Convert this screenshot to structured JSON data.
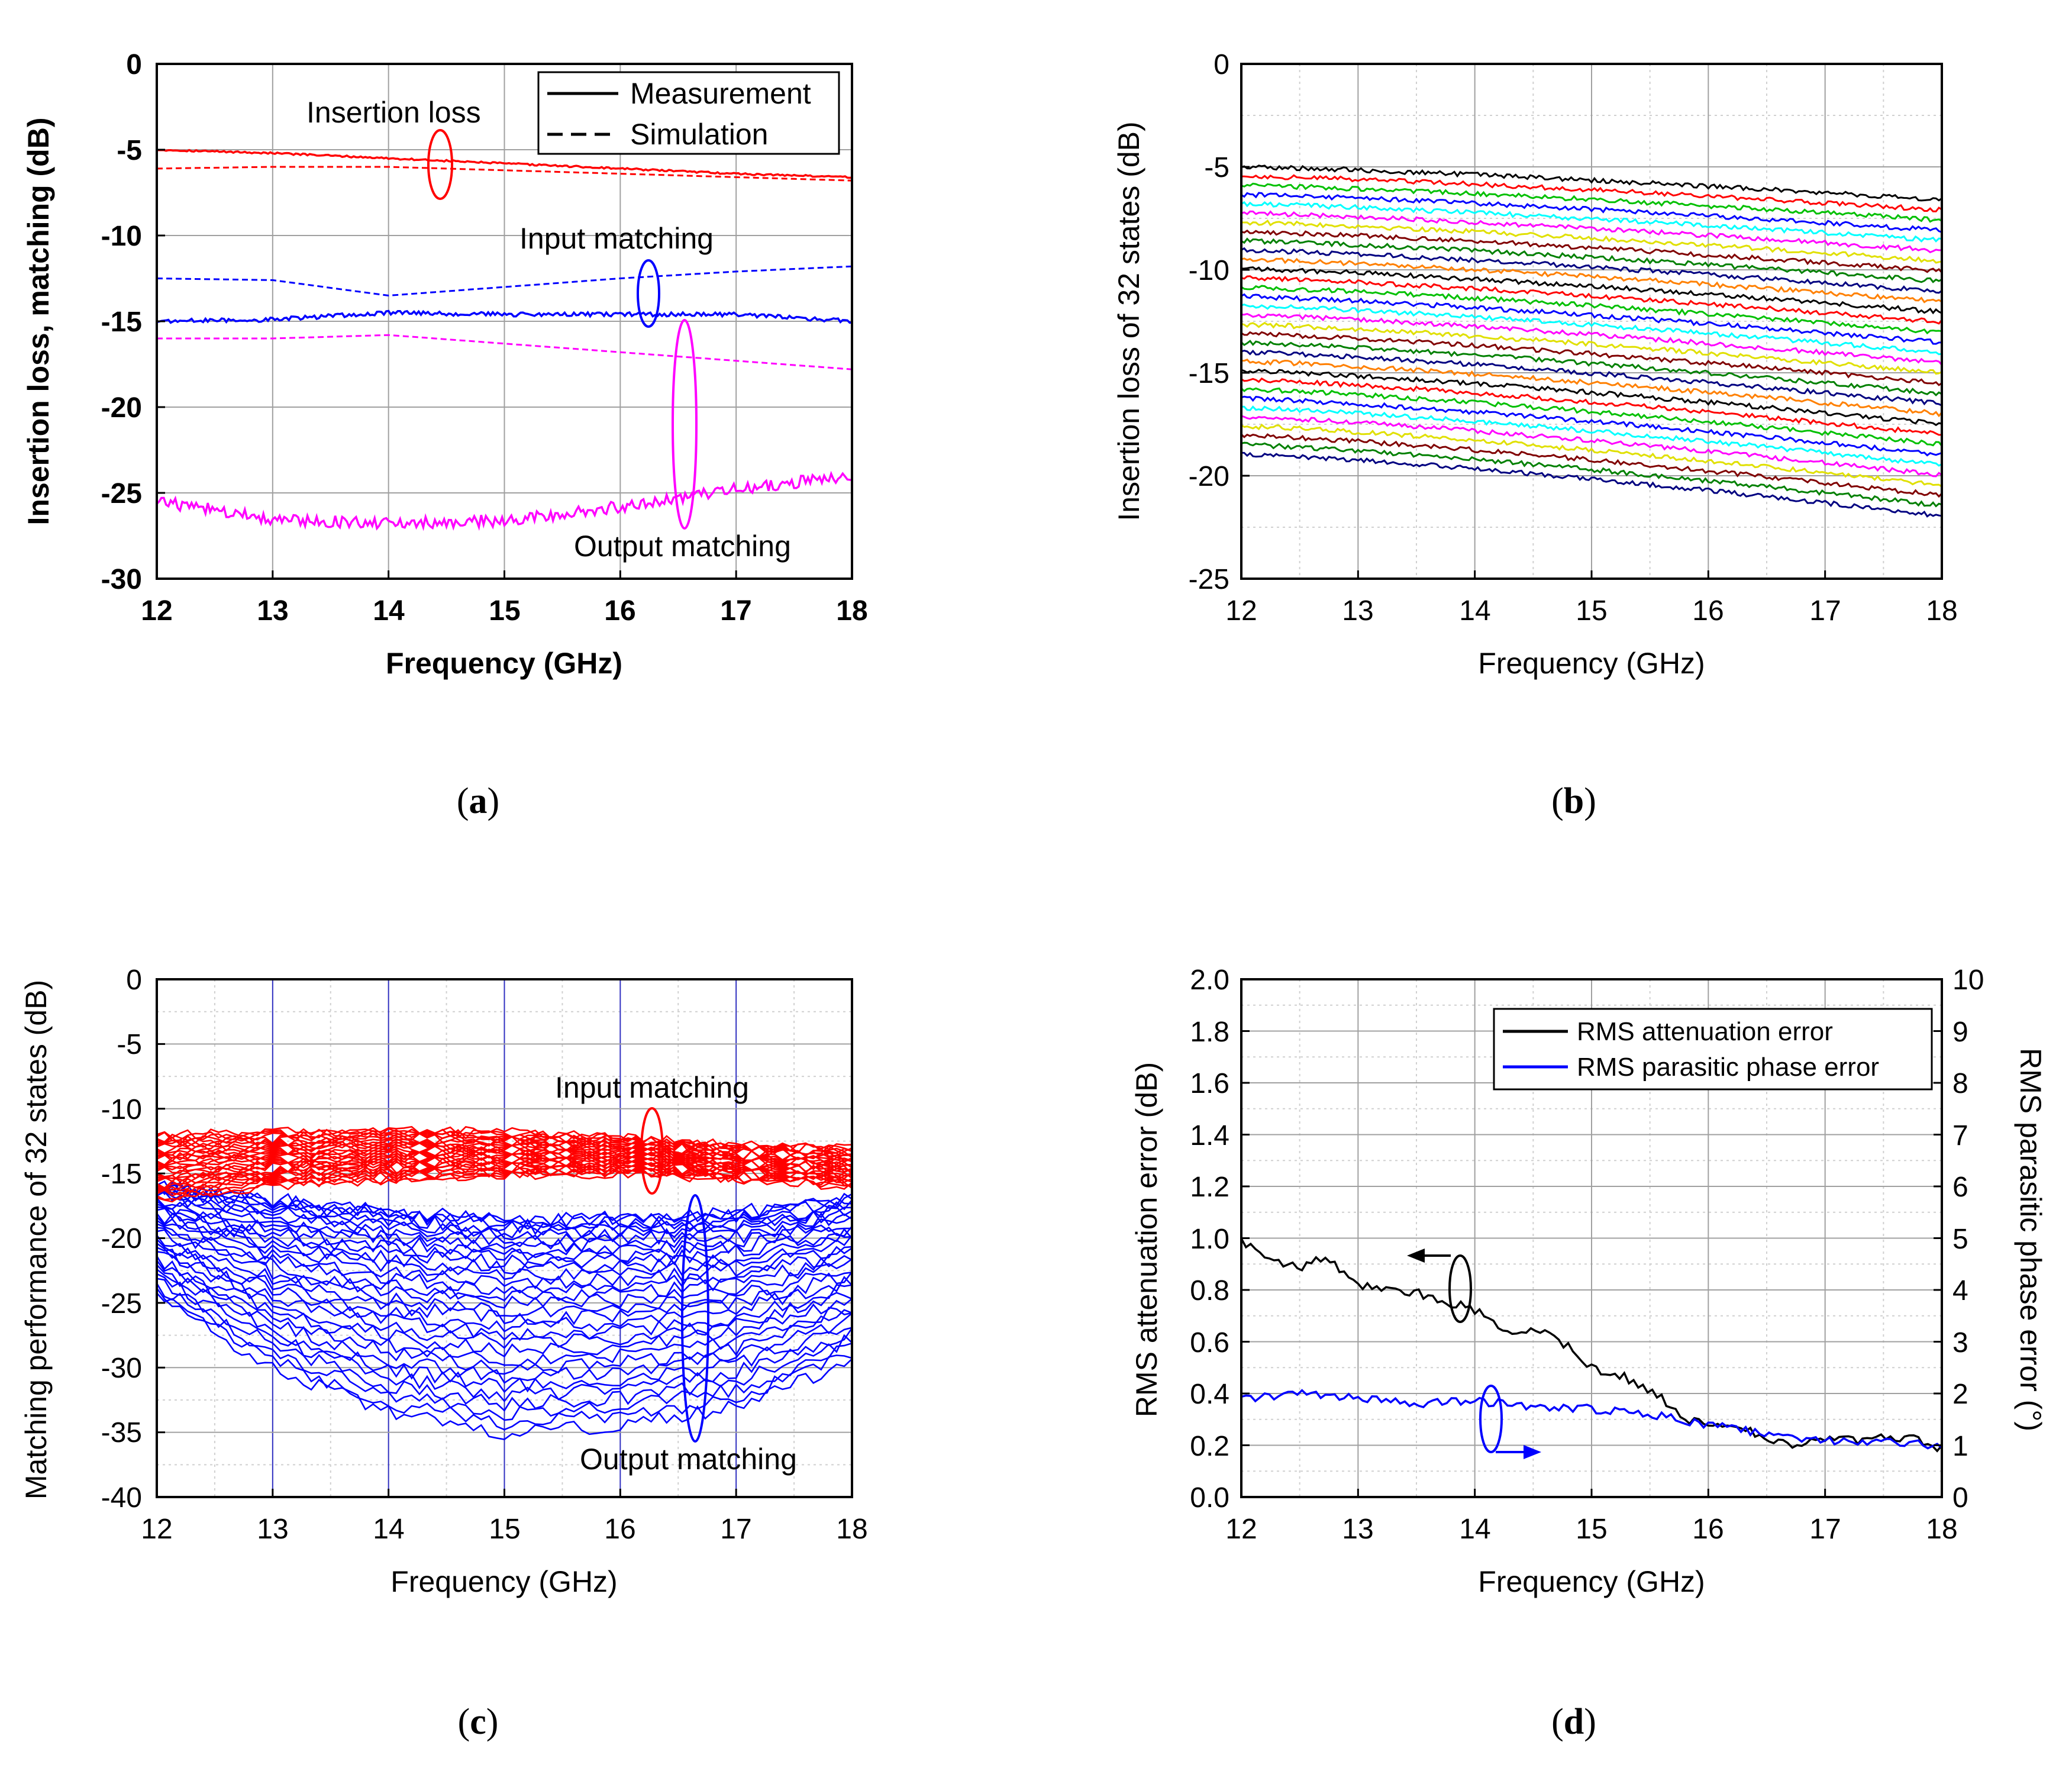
{
  "chart_data": [
    {
      "id": "a",
      "type": "line",
      "caption": "a",
      "xlabel": "Frequency (GHz)",
      "ylabel": "Insertion loss, matching (dB)",
      "xlim": [
        12,
        18
      ],
      "ylim": [
        -30,
        0
      ],
      "xticks": [
        "12",
        "13",
        "14",
        "15",
        "16",
        "17",
        "18"
      ],
      "yticks": [
        "0",
        "-5",
        "-10",
        "-15",
        "-20",
        "-25",
        "-30"
      ],
      "grid": true,
      "legend": {
        "position": "top-right",
        "entries": [
          {
            "label": "Measurement",
            "style": "solid"
          },
          {
            "label": "Simulation",
            "style": "dashed"
          }
        ]
      },
      "annotations": [
        "Insertion loss",
        "Input matching",
        "Output matching"
      ],
      "x": [
        12,
        13,
        14,
        15,
        16,
        17,
        18
      ],
      "series": [
        {
          "name": "Insertion loss (measurement)",
          "color": "#ff0000",
          "style": "solid",
          "noise": 0.05,
          "values": [
            -5.0,
            -5.2,
            -5.5,
            -5.8,
            -6.1,
            -6.4,
            -6.6
          ]
        },
        {
          "name": "Insertion loss (simulation)",
          "color": "#ff0000",
          "style": "dashed",
          "noise": 0,
          "values": [
            -6.1,
            -6.0,
            -6.0,
            -6.2,
            -6.4,
            -6.6,
            -6.8
          ]
        },
        {
          "name": "Input matching (measurement)",
          "color": "#0000ff",
          "style": "solid",
          "noise": 0.12,
          "values": [
            -15.0,
            -14.9,
            -14.5,
            -14.6,
            -14.6,
            -14.6,
            -15.0
          ]
        },
        {
          "name": "Input matching (simulation)",
          "color": "#0000ff",
          "style": "dashed",
          "noise": 0,
          "values": [
            -12.5,
            -12.6,
            -13.5,
            -13.0,
            -12.5,
            -12.1,
            -11.8
          ]
        },
        {
          "name": "Output matching (measurement)",
          "color": "#ff00ff",
          "style": "solid",
          "noise": 0.35,
          "values": [
            -25.5,
            -26.5,
            -26.8,
            -26.6,
            -25.8,
            -24.8,
            -24.0
          ]
        },
        {
          "name": "Output matching (simulation)",
          "color": "#ff00ff",
          "style": "dashed",
          "noise": 0,
          "values": [
            -16.0,
            -16.0,
            -15.8,
            -16.3,
            -16.8,
            -17.3,
            -17.8
          ]
        }
      ]
    },
    {
      "id": "b",
      "type": "line",
      "caption": "b",
      "xlabel": "Frequency (GHz)",
      "ylabel": "Insertion loss of 32 states (dB)",
      "xlim": [
        12,
        18
      ],
      "ylim": [
        -25,
        0
      ],
      "xticks": [
        "12",
        "13",
        "14",
        "15",
        "16",
        "17",
        "18"
      ],
      "yticks": [
        "0",
        "-5",
        "-10",
        "-15",
        "-20",
        "-25"
      ],
      "grid": true,
      "states": 32,
      "state_start": -5.0,
      "state_step": 0.45,
      "top_state_slope": -1.6,
      "bottom_state_slope": -3.0,
      "colors": [
        "#000000",
        "#ff0000",
        "#00c000",
        "#0000ff",
        "#00ffff",
        "#ff00ff",
        "#e0e000",
        "#800000",
        "#008000",
        "#000080",
        "#ff8000"
      ]
    },
    {
      "id": "c",
      "type": "line",
      "caption": "c",
      "xlabel": "Frequency (GHz)",
      "ylabel": "Matching performance of 32 states (dB)",
      "xlim": [
        12,
        18
      ],
      "ylim": [
        -40,
        0
      ],
      "xticks": [
        "12",
        "13",
        "14",
        "15",
        "16",
        "17",
        "18"
      ],
      "yticks": [
        "0",
        "-5",
        "-10",
        "-15",
        "-20",
        "-25",
        "-30",
        "-35",
        "-40"
      ],
      "grid": true,
      "annotations": [
        "Input matching",
        "Output matching"
      ],
      "x": [
        12,
        13,
        14,
        15,
        16,
        17,
        18
      ],
      "input_matching": {
        "color": "#ff0000",
        "upper": [
          -12.0,
          -11.8,
          -11.6,
          -11.8,
          -12.2,
          -12.8,
          -13.0
        ],
        "lower": [
          -17.0,
          -16.0,
          -15.5,
          -15.2,
          -15.0,
          -15.5,
          -16.0
        ]
      },
      "output_matching": {
        "color": "#0000ff",
        "upper": [
          -16.0,
          -17.0,
          -18.0,
          -18.5,
          -18.5,
          -18.0,
          -17.0
        ],
        "lower": [
          -24.5,
          -30.0,
          -33.5,
          -35.0,
          -34.5,
          -33.0,
          -29.5
        ]
      }
    },
    {
      "id": "d",
      "type": "line",
      "caption": "d",
      "xlabel": "Frequency (GHz)",
      "ylabel": "RMS attenuation error (dB)",
      "y2label": "RMS parasitic phase error (°)",
      "xlim": [
        12,
        18
      ],
      "ylim": [
        0.0,
        2.0
      ],
      "y2lim": [
        0,
        10
      ],
      "xticks": [
        "12",
        "13",
        "14",
        "15",
        "16",
        "17",
        "18"
      ],
      "yticks": [
        "0.0",
        "0.2",
        "0.4",
        "0.6",
        "0.8",
        "1.0",
        "1.2",
        "1.4",
        "1.6",
        "1.8",
        "2.0"
      ],
      "y2ticks": [
        "0",
        "1",
        "2",
        "3",
        "4",
        "5",
        "6",
        "7",
        "8",
        "9",
        "10"
      ],
      "grid": true,
      "legend": {
        "position": "top-right",
        "entries": [
          {
            "label": "RMS attenuation error",
            "color": "#000000"
          },
          {
            "label": "RMS parasitic phase error",
            "color": "#0000ff"
          }
        ]
      },
      "series": [
        {
          "name": "RMS attenuation error",
          "axis": "left",
          "color": "#000000",
          "x": [
            12.0,
            12.2,
            12.5,
            12.7,
            13.0,
            13.3,
            13.6,
            14.0,
            14.3,
            14.5,
            14.8,
            15.0,
            15.3,
            15.6,
            15.8,
            16.0,
            16.3,
            16.5,
            16.8,
            17.0,
            17.3,
            17.6,
            17.8,
            18.0
          ],
          "values": [
            0.99,
            0.92,
            0.88,
            0.93,
            0.82,
            0.8,
            0.78,
            0.72,
            0.64,
            0.65,
            0.58,
            0.5,
            0.46,
            0.38,
            0.3,
            0.29,
            0.26,
            0.23,
            0.2,
            0.23,
            0.22,
            0.23,
            0.22,
            0.19
          ]
        },
        {
          "name": "RMS parasitic phase error",
          "axis": "right",
          "color": "#0000ff",
          "x": [
            12.0,
            12.5,
            13.0,
            13.5,
            14.0,
            14.5,
            15.0,
            15.5,
            16.0,
            16.5,
            17.0,
            17.5,
            18.0
          ],
          "values": [
            1.9,
            2.0,
            1.9,
            1.8,
            1.85,
            1.75,
            1.7,
            1.6,
            1.4,
            1.2,
            1.1,
            1.05,
            1.0
          ]
        }
      ]
    }
  ]
}
